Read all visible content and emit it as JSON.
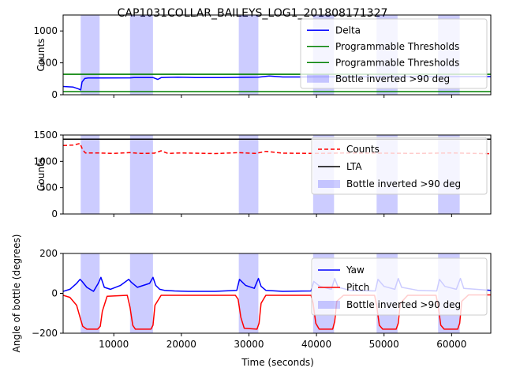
{
  "figure": {
    "title": "CAP1031COLLAR_BAILEYS_LOG1_201808171327",
    "xlabel": "Time (seconds)",
    "xlim": [
      2500,
      65800
    ],
    "x_ticks": [
      10000,
      20000,
      30000,
      40000,
      50000,
      60000
    ],
    "x_tick_labels": [
      "10000",
      "20000",
      "30000",
      "40000",
      "50000",
      "60000"
    ],
    "inverted_periods": [
      [
        5100,
        7900
      ],
      [
        12400,
        15800
      ],
      [
        28500,
        31400
      ],
      [
        39500,
        42600
      ],
      [
        48900,
        52000
      ],
      [
        58000,
        61200
      ]
    ]
  },
  "chart_data": [
    {
      "type": "line",
      "ylabel": "Counts",
      "ylim": [
        0,
        1250
      ],
      "y_ticks": [
        0,
        500,
        1000
      ],
      "y_tick_labels": [
        "0",
        "500",
        "1000"
      ],
      "legend": [
        "Delta",
        "Programmable Thresholds",
        "Programmable Thresholds",
        "Bottle inverted >90 deg"
      ],
      "legend_position": "top-right",
      "series": [
        {
          "name": "Delta",
          "color": "#0000ff",
          "style": "solid",
          "x": [
            2500,
            4000,
            4800,
            5100,
            5300,
            5700,
            6200,
            8000,
            12400,
            13000,
            15800,
            16500,
            17000,
            18000,
            19500,
            21000,
            22000,
            26000,
            28500,
            31400,
            33000,
            35000,
            40000,
            50000,
            60000,
            65800
          ],
          "y": [
            130,
            120,
            90,
            75,
            200,
            255,
            262,
            262,
            265,
            270,
            270,
            240,
            268,
            272,
            275,
            272,
            268,
            270,
            272,
            275,
            295,
            278,
            280,
            282,
            285,
            285
          ]
        },
        {
          "name": "Programmable Thresholds",
          "color": "#008000",
          "style": "solid",
          "x": [
            2500,
            65800
          ],
          "y": [
            320,
            320
          ]
        },
        {
          "name": "Programmable Thresholds",
          "color": "#008000",
          "style": "solid",
          "x": [
            2500,
            65800
          ],
          "y": [
            50,
            50
          ]
        }
      ]
    },
    {
      "type": "line",
      "ylabel": "Counts",
      "ylim": [
        0,
        1500
      ],
      "y_ticks": [
        0,
        500,
        1000,
        1500
      ],
      "y_tick_labels": [
        "0",
        "500",
        "1000",
        "1500"
      ],
      "legend": [
        "Counts",
        "LTA",
        "Bottle inverted >90 deg"
      ],
      "legend_position": "right",
      "series": [
        {
          "name": "Counts",
          "color": "#ff0000",
          "style": "dashed",
          "x": [
            2500,
            4000,
            5000,
            5400,
            5800,
            8000,
            10000,
            12400,
            14000,
            16000,
            17000,
            18000,
            20000,
            25000,
            28500,
            31000,
            32500,
            35000,
            40000,
            45000,
            50000,
            55000,
            60000,
            65800
          ],
          "y": [
            1300,
            1310,
            1340,
            1220,
            1160,
            1158,
            1150,
            1165,
            1150,
            1155,
            1200,
            1150,
            1160,
            1148,
            1165,
            1150,
            1190,
            1155,
            1150,
            1160,
            1155,
            1150,
            1160,
            1145
          ]
        },
        {
          "name": "LTA",
          "color": "#000000",
          "style": "solid",
          "x": [
            2500,
            65800
          ],
          "y": [
            1420,
            1420
          ]
        }
      ]
    },
    {
      "type": "line",
      "ylabel": "Angle of bottle (degrees)",
      "ylim": [
        -200,
        200
      ],
      "y_ticks": [
        -200,
        0,
        200
      ],
      "y_tick_labels": [
        "−200",
        "0",
        "200"
      ],
      "legend": [
        "Yaw",
        "Pitch",
        "Bottle inverted >90 deg"
      ],
      "legend_position": "right",
      "series": [
        {
          "name": "Yaw",
          "color": "#0000ff",
          "style": "solid",
          "x": [
            2500,
            3500,
            4500,
            5000,
            5300,
            6000,
            7000,
            7700,
            8100,
            8600,
            9500,
            11000,
            12200,
            12600,
            13500,
            15300,
            15800,
            16200,
            16800,
            17500,
            19000,
            21000,
            25000,
            28200,
            28600,
            29500,
            30800,
            31400,
            31800,
            32500,
            35000,
            39200,
            39600,
            40500,
            42200,
            42700,
            43200,
            45000,
            48700,
            49100,
            50000,
            51600,
            52100,
            52600,
            55000,
            57800,
            58200,
            59000,
            60700,
            61300,
            61800,
            65800
          ],
          "y": [
            10,
            20,
            50,
            70,
            60,
            30,
            10,
            50,
            80,
            30,
            20,
            40,
            70,
            55,
            30,
            50,
            80,
            40,
            20,
            15,
            12,
            10,
            10,
            15,
            70,
            40,
            25,
            75,
            35,
            15,
            10,
            12,
            60,
            35,
            20,
            75,
            30,
            15,
            12,
            70,
            35,
            20,
            75,
            30,
            15,
            12,
            70,
            35,
            20,
            75,
            25,
            15
          ]
        },
        {
          "name": "Pitch",
          "color": "#ff0000",
          "style": "solid",
          "x": [
            2500,
            3500,
            4500,
            5000,
            5400,
            6000,
            7600,
            8000,
            8300,
            9000,
            12000,
            12400,
            12800,
            13200,
            15500,
            15800,
            16100,
            17000,
            28000,
            28400,
            28800,
            29300,
            31200,
            31500,
            31800,
            32500,
            39200,
            39500,
            39900,
            40400,
            42400,
            42700,
            43000,
            44000,
            48600,
            48900,
            49300,
            49800,
            51800,
            52100,
            52400,
            53500,
            57700,
            58000,
            58400,
            58900,
            60900,
            61200,
            61500,
            62500,
            65800
          ],
          "y": [
            -10,
            -20,
            -60,
            -120,
            -165,
            -180,
            -180,
            -165,
            -90,
            -15,
            -10,
            -70,
            -160,
            -180,
            -180,
            -160,
            -60,
            -10,
            -10,
            -30,
            -120,
            -175,
            -180,
            -150,
            -50,
            -10,
            -10,
            -50,
            -150,
            -180,
            -180,
            -140,
            -40,
            -10,
            -10,
            -60,
            -160,
            -180,
            -180,
            -150,
            -50,
            -10,
            -10,
            -60,
            -160,
            -180,
            -180,
            -150,
            -40,
            -8,
            -8
          ]
        }
      ]
    }
  ],
  "colors": {
    "shade": "#0000ff",
    "delta": "#0000ff",
    "thresholds": "#008000",
    "counts": "#ff0000",
    "lta": "#000000",
    "yaw": "#0000ff",
    "pitch": "#ff0000"
  }
}
